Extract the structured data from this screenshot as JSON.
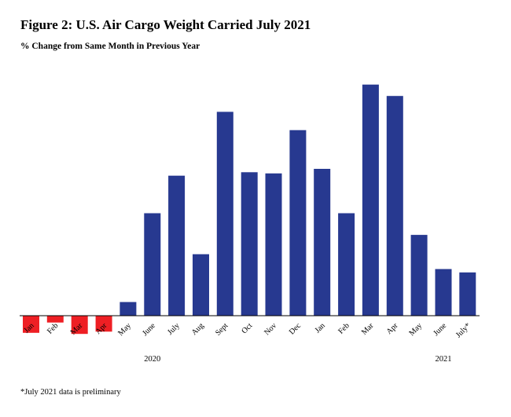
{
  "chart_data": {
    "type": "bar",
    "title": "Figure 2: U.S. Air Cargo Weight Carried July 2021",
    "subtitle": "% Change from Same Month in Previous Year",
    "categories": [
      "Jan",
      "Feb",
      "Mar",
      "Apr",
      "May",
      "June",
      "July",
      "Aug",
      "Sept",
      "Oct",
      "Nov",
      "Dec",
      "Jan",
      "Feb",
      "Mar",
      "Apr",
      "May",
      "June",
      "July*"
    ],
    "values": [
      -7.5,
      -3.0,
      -8.0,
      -7.0,
      6.0,
      45.0,
      61.5,
      27.0,
      89.5,
      63.0,
      62.5,
      81.5,
      64.5,
      45.0,
      101.5,
      96.5,
      35.5,
      20.5,
      19.0
    ],
    "year_labels": [
      {
        "text": "2020",
        "center_index": 5
      },
      {
        "text": "2021",
        "center_index": 17
      }
    ],
    "ylim": [
      -10,
      105
    ],
    "grid": false,
    "legend": "none",
    "colors": {
      "positive": "#273990",
      "negative": "#ee1f24"
    },
    "footnote": "*July 2021 data is preliminary"
  }
}
